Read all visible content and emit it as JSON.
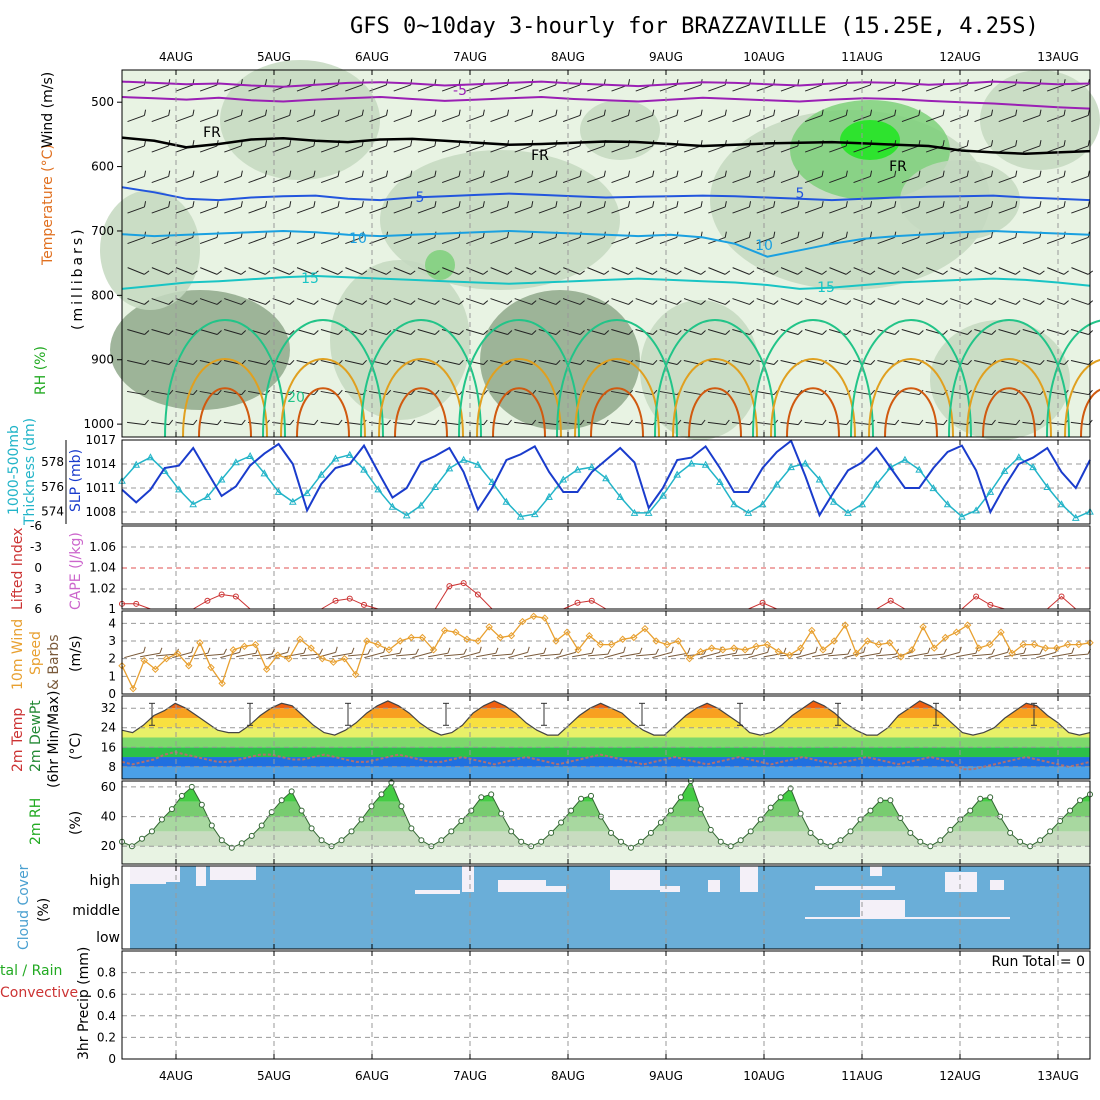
{
  "title": "GFS 0~10day 3-hourly for BRAZZAVILLE (15.25E, 4.25S)",
  "dates": [
    "4AUG",
    "5AUG",
    "6AUG",
    "7AUG",
    "8AUG",
    "9AUG",
    "10AUG",
    "11AUG",
    "12AUG",
    "13AUG"
  ],
  "colors": {
    "rh_light": "#e8f3e3",
    "rh_mid": "#c4d8c0",
    "rh_dark": "#8fa88b",
    "rh_green": "#7ed07a",
    "rh_bright": "#1ee61e",
    "iso_neg": "#9a1fb4",
    "iso_fr": "#000000",
    "iso_5": "#2255dd",
    "iso_10": "#1aa0e0",
    "iso_15": "#18c4c4",
    "iso_20": "#22c488",
    "iso_25": "#e0a020",
    "iso_30": "#d05a10",
    "slp": "#1a3ccc",
    "thickness": "#22b4c8",
    "cape": "#cc3333",
    "wind": "#e8a030",
    "barb": "#7a5a3a",
    "cloud": "#6aaed8",
    "cloud_clear": "#f4f0f8",
    "rh2m": "#44cc44"
  },
  "chart_data": [
    {
      "name": "upper-air",
      "type": "heatmap",
      "ylabel": "Wind (m/s)  Temperature (°C)  RH (%)  (millibars)",
      "yticks": [
        500,
        600,
        700,
        800,
        900,
        1000
      ],
      "ylim": [
        450,
        1020
      ],
      "isotherm_labels": [
        "-5",
        "FR",
        "5",
        "10",
        "15",
        "20"
      ],
      "isotherms": [
        {
          "label": "-5",
          "p": [
            468,
            470,
            472,
            471,
            474,
            476,
            473,
            470,
            469,
            471,
            474,
            472,
            470,
            468,
            471,
            473,
            475,
            472,
            469,
            470,
            472,
            474,
            471,
            469,
            470,
            473,
            471,
            468,
            470,
            472,
            471
          ],
          "color_key": "iso_neg"
        },
        {
          "label": "-5b",
          "p": [
            492,
            494,
            496,
            493,
            497,
            499,
            496,
            494,
            492,
            495,
            498,
            496,
            494,
            492,
            495,
            497,
            499,
            496,
            493,
            495,
            497,
            499,
            496,
            494,
            495,
            498,
            500,
            502,
            505,
            508,
            510
          ],
          "color_key": "iso_neg"
        },
        {
          "label": "FR",
          "p": [
            555,
            560,
            570,
            565,
            558,
            556,
            560,
            562,
            558,
            557,
            560,
            563,
            566,
            565,
            563,
            561,
            562,
            565,
            568,
            566,
            564,
            563,
            562,
            564,
            566,
            568,
            575,
            578,
            580,
            578,
            576
          ],
          "color_key": "iso_fr"
        },
        {
          "label": "5",
          "p": [
            632,
            640,
            650,
            652,
            648,
            646,
            645,
            650,
            652,
            648,
            646,
            644,
            642,
            644,
            646,
            648,
            647,
            646,
            645,
            646,
            648,
            650,
            652,
            650,
            648,
            647,
            646,
            645,
            648,
            650,
            652
          ],
          "color_key": "iso_5"
        },
        {
          "label": "10",
          "p": [
            705,
            708,
            706,
            704,
            702,
            700,
            702,
            706,
            708,
            706,
            704,
            702,
            700,
            702,
            704,
            706,
            708,
            706,
            710,
            720,
            740,
            730,
            720,
            712,
            708,
            705,
            702,
            700,
            702,
            704,
            706
          ],
          "color_key": "iso_10"
        },
        {
          "label": "15",
          "p": [
            790,
            785,
            780,
            778,
            775,
            772,
            770,
            772,
            774,
            776,
            778,
            780,
            782,
            780,
            778,
            776,
            774,
            776,
            778,
            780,
            784,
            790,
            788,
            784,
            780,
            778,
            776,
            774,
            776,
            780,
            785
          ],
          "color_key": "iso_15"
        }
      ],
      "barb_speed_label": "Wind (m/s)"
    },
    {
      "name": "slp-thickness",
      "type": "line",
      "ylabel_left": "1000-500mb Thickness (dm)",
      "ylabel_right": "SLP (mb)",
      "yticks_left": [
        574,
        576,
        578
      ],
      "yticks_right": [
        1008,
        1011,
        1014,
        1017
      ],
      "ylim_left": [
        573,
        579.8
      ],
      "ylim_right": [
        1006.5,
        1017
      ],
      "thickness": [
        576.5,
        577.8,
        578.4,
        577.3,
        575.8,
        574.6,
        575.2,
        576.6,
        578.0,
        578.5,
        577.1,
        575.6,
        574.8,
        575.5,
        577.0,
        578.3,
        578.6,
        577.4,
        575.8,
        574.4,
        573.7,
        574.5,
        576.0,
        577.5,
        578.2,
        577.8,
        576.4,
        574.8,
        573.6,
        573.8,
        575.2,
        576.6,
        577.4,
        577.6,
        576.7,
        575.2,
        573.9,
        573.9,
        575.3,
        577.0,
        577.9,
        577.8,
        576.4,
        574.6,
        573.9,
        574.6,
        576.2,
        577.6,
        577.9,
        576.6,
        574.8,
        573.9,
        574.6,
        576.2,
        577.6,
        578.2,
        577.4,
        575.9,
        574.6,
        573.6,
        574.1,
        575.6,
        577.3,
        578.4,
        577.6,
        576.0,
        574.6,
        573.5,
        574.0
      ],
      "slp": [
        1010.8,
        1009.2,
        1010.8,
        1013.5,
        1013.8,
        1016.0,
        1013.0,
        1010.0,
        1011.2,
        1013.8,
        1015.3,
        1016.5,
        1014.0,
        1008.2,
        1011.5,
        1013.5,
        1014.0,
        1016.3,
        1013.0,
        1009.8,
        1011.0,
        1014.2,
        1015.0,
        1016.0,
        1013.0,
        1008.3,
        1011.0,
        1014.5,
        1015.2,
        1016.2,
        1013.0,
        1010.5,
        1010.5,
        1013.0,
        1014.5,
        1016.0,
        1014.2,
        1008.5,
        1011.0,
        1014.5,
        1014.8,
        1016.2,
        1013.5,
        1010.5,
        1010.5,
        1013.5,
        1015.5,
        1016.9,
        1012.5,
        1007.6,
        1010.5,
        1013.2,
        1014.2,
        1016.0,
        1013.5,
        1011.0,
        1011.0,
        1013.5,
        1015.5,
        1016.3,
        1013.2,
        1008.0,
        1011.2,
        1014.0,
        1014.8,
        1016.0,
        1013.0,
        1011.0,
        1014.5
      ]
    },
    {
      "name": "lifted-cape",
      "type": "line",
      "ylabel_left": "Lifted Index",
      "ylabel_right": "CAPE (J/kg)",
      "yticks_left": [
        "-6",
        "-3",
        "0",
        "3",
        "6"
      ],
      "yticks_right": [
        "1",
        "1.02",
        "1.04",
        "1.06"
      ],
      "ylim_right": [
        1.0,
        1.08
      ],
      "cape": [
        1.005,
        1.005,
        1.0,
        1.0,
        1.0,
        1.0,
        1.008,
        1.014,
        1.012,
        1.0,
        1.0,
        1.0,
        1.0,
        1.0,
        1.0,
        1.008,
        1.01,
        1.004,
        1.0,
        1.0,
        1.0,
        1.0,
        1.0,
        1.022,
        1.025,
        1.014,
        1.0,
        1.0,
        1.0,
        1.0,
        1.0,
        1.0,
        1.006,
        1.008,
        1.0,
        1.0,
        1.0,
        1.0,
        1.0,
        1.0,
        1.0,
        1.0,
        1.0,
        1.0,
        1.0,
        1.006,
        1.0,
        1.0,
        1.0,
        1.0,
        1.0,
        1.0,
        1.0,
        1.0,
        1.008,
        1.0,
        1.0,
        1.0,
        1.0,
        1.0,
        1.012,
        1.004,
        1.0,
        1.0,
        1.0,
        1.0,
        1.012,
        1.0,
        1.0
      ]
    },
    {
      "name": "wind10m",
      "type": "line",
      "ylabel": "10m Wind Speed & Barbs (m/s)",
      "yticks": [
        0,
        1,
        2,
        3,
        4
      ],
      "ylim": [
        0,
        4.7
      ],
      "speed": [
        1.6,
        0.3,
        1.9,
        1.4,
        2.0,
        2.3,
        1.6,
        2.9,
        1.5,
        0.6,
        2.5,
        2.7,
        2.8,
        1.4,
        2.2,
        2.0,
        3.1,
        2.6,
        2.0,
        1.8,
        2.0,
        1.1,
        3.0,
        2.8,
        2.5,
        3.0,
        3.2,
        3.2,
        2.5,
        3.6,
        3.5,
        3.1,
        3.0,
        3.8,
        3.2,
        3.3,
        4.1,
        4.4,
        4.3,
        3.0,
        3.5,
        2.5,
        3.3,
        2.8,
        2.8,
        3.1,
        3.2,
        3.7,
        3.0,
        2.8,
        3.0,
        2.0,
        2.4,
        2.6,
        2.5,
        2.6,
        2.5,
        2.7,
        2.8,
        2.4,
        2.2,
        2.6,
        3.6,
        2.5,
        3.0,
        3.9,
        2.3,
        3.0,
        2.8,
        2.9,
        2.1,
        2.5,
        3.8,
        2.6,
        3.2,
        3.5,
        3.9,
        2.6,
        2.8,
        3.5,
        2.3,
        2.8,
        2.8,
        2.6,
        2.6,
        2.8,
        2.8,
        2.9
      ]
    },
    {
      "name": "temperature",
      "type": "area",
      "ylabel": "2m Temp 2m DewPt (6hr Min/Max) (°C)",
      "yticks": [
        8,
        16,
        24,
        32
      ],
      "ylim": [
        3,
        37
      ],
      "temp": [
        23,
        22,
        25,
        29,
        31,
        34,
        32,
        29,
        26,
        23,
        22,
        22,
        25,
        29,
        32,
        34,
        33,
        29,
        25,
        22,
        21,
        23,
        26,
        30,
        33,
        35,
        33,
        30,
        26,
        23,
        21,
        22,
        25,
        30,
        33,
        35,
        33,
        30,
        26,
        23,
        21,
        21,
        25,
        29,
        32,
        34,
        32,
        30,
        26,
        23,
        21,
        21,
        25,
        29,
        32,
        34,
        32,
        29,
        26,
        22,
        21,
        22,
        25,
        29,
        32,
        35,
        33,
        30,
        26,
        23,
        21,
        21,
        24,
        29,
        32,
        35,
        33,
        30,
        26,
        22,
        21,
        22,
        24,
        28,
        31,
        34,
        33,
        29,
        26,
        22,
        21,
        22
      ],
      "dew": [
        10,
        9,
        10,
        11,
        13,
        14,
        13,
        12,
        11,
        10,
        10,
        11,
        12,
        13,
        13,
        12,
        11,
        11,
        12,
        13,
        12,
        11,
        10,
        10,
        11,
        12,
        13,
        12,
        11,
        10,
        10,
        11,
        12,
        11,
        10,
        9,
        10,
        11,
        12,
        11,
        10,
        9,
        10,
        11,
        12,
        13,
        12,
        11,
        10,
        9,
        10,
        11,
        12,
        11,
        10,
        9,
        10,
        11,
        12,
        11,
        10,
        9,
        10,
        11,
        12,
        11,
        10,
        9,
        10,
        11,
        12,
        11,
        10,
        9,
        10,
        11,
        12,
        11,
        10,
        7,
        7,
        8,
        9,
        10,
        11,
        12,
        11,
        10,
        9,
        8,
        9,
        10
      ]
    },
    {
      "name": "rh2m",
      "type": "area",
      "ylabel": "2m RH (%)",
      "yticks": [
        20,
        40,
        60
      ],
      "ylim": [
        8,
        64
      ],
      "rh": [
        23,
        20,
        25,
        30,
        38,
        45,
        54,
        60,
        48,
        34,
        24,
        19,
        22,
        27,
        34,
        43,
        51,
        57,
        44,
        32,
        24,
        20,
        24,
        30,
        38,
        47,
        55,
        63,
        47,
        32,
        24,
        20,
        24,
        30,
        37,
        44,
        53,
        55,
        42,
        30,
        23,
        20,
        23,
        29,
        36,
        44,
        52,
        54,
        40,
        29,
        23,
        19,
        23,
        29,
        36,
        44,
        53,
        64,
        45,
        31,
        23,
        20,
        24,
        30,
        38,
        46,
        53,
        59,
        42,
        29,
        23,
        20,
        24,
        30,
        38,
        44,
        51,
        51,
        39,
        29,
        23,
        20,
        24,
        31,
        38,
        44,
        52,
        53,
        40,
        29,
        23,
        20,
        24,
        30,
        37,
        44,
        51,
        55
      ]
    },
    {
      "name": "cloud",
      "type": "bar",
      "ylabel": "Cloud Cover (%)",
      "levels": [
        "high",
        "middle",
        "low"
      ]
    },
    {
      "name": "precip",
      "type": "bar",
      "ylabel": "3hr Precip (mm)",
      "legend": [
        "Total / Rain",
        "Convective"
      ],
      "yticks": [
        "0",
        "0.2",
        "0.4",
        "0.6",
        "0.8"
      ],
      "ylim": [
        0,
        1
      ],
      "run_total_label": "Run Total = 0",
      "values": []
    }
  ],
  "labels": {
    "ua_wind": "Wind (m/s)",
    "ua_temp": "Temperature (°C)",
    "ua_rh": "RH (%)",
    "ua_mb": "(millibars)",
    "thick": "1000-500mb",
    "thick2": "Thickness (dm)",
    "slp": "SLP (mb)",
    "li": "Lifted Index",
    "cape": "CAPE (J/kg)",
    "wind_a": "10m Wind",
    "wind_b": "Speed",
    "wind_c": "& Barbs",
    "wind_d": "(m/s)",
    "temp_a": "2m Temp",
    "temp_b": "2m DewPt",
    "temp_c": "(6hr Min/Max)",
    "temp_d": "(°C)",
    "rh_a": "2m RH",
    "rh_b": "(%)",
    "cc_a": "Cloud Cover",
    "cc_b": "(%)",
    "pr_a": "tal / Rain",
    "pr_b": "Convective",
    "pr_c": "3hr Precip (mm)"
  }
}
